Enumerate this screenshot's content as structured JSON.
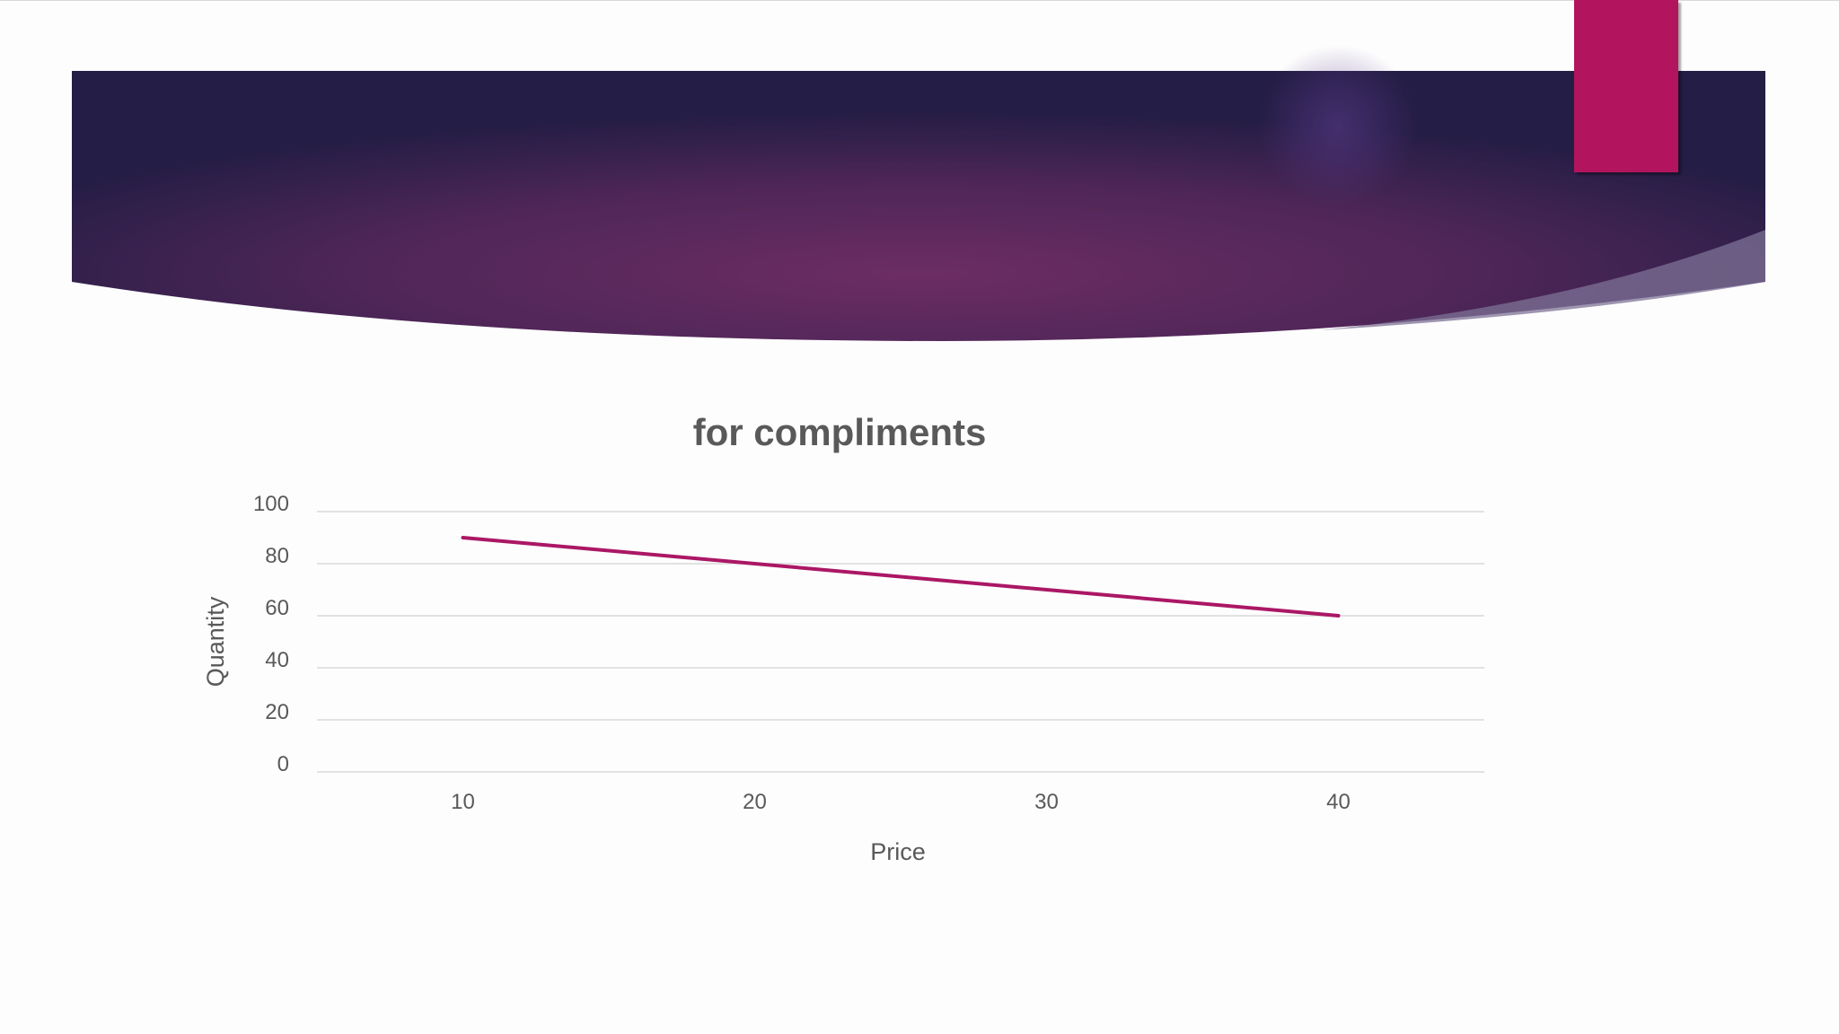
{
  "slide": {
    "accent_color": "#b3145e",
    "banner_colors": [
      "#241d45",
      "#6c2d63"
    ]
  },
  "chart_data": {
    "type": "line",
    "title": "for compliments",
    "xlabel": "Price",
    "ylabel": "Quantity",
    "x": [
      10,
      20,
      30,
      40
    ],
    "series": [
      {
        "values": [
          90,
          80,
          70,
          60
        ],
        "color": "#ab1765"
      }
    ],
    "ylim": [
      0,
      100
    ],
    "yticks": [
      0,
      20,
      40,
      60,
      80,
      100
    ],
    "grid": true,
    "legend": "none"
  }
}
